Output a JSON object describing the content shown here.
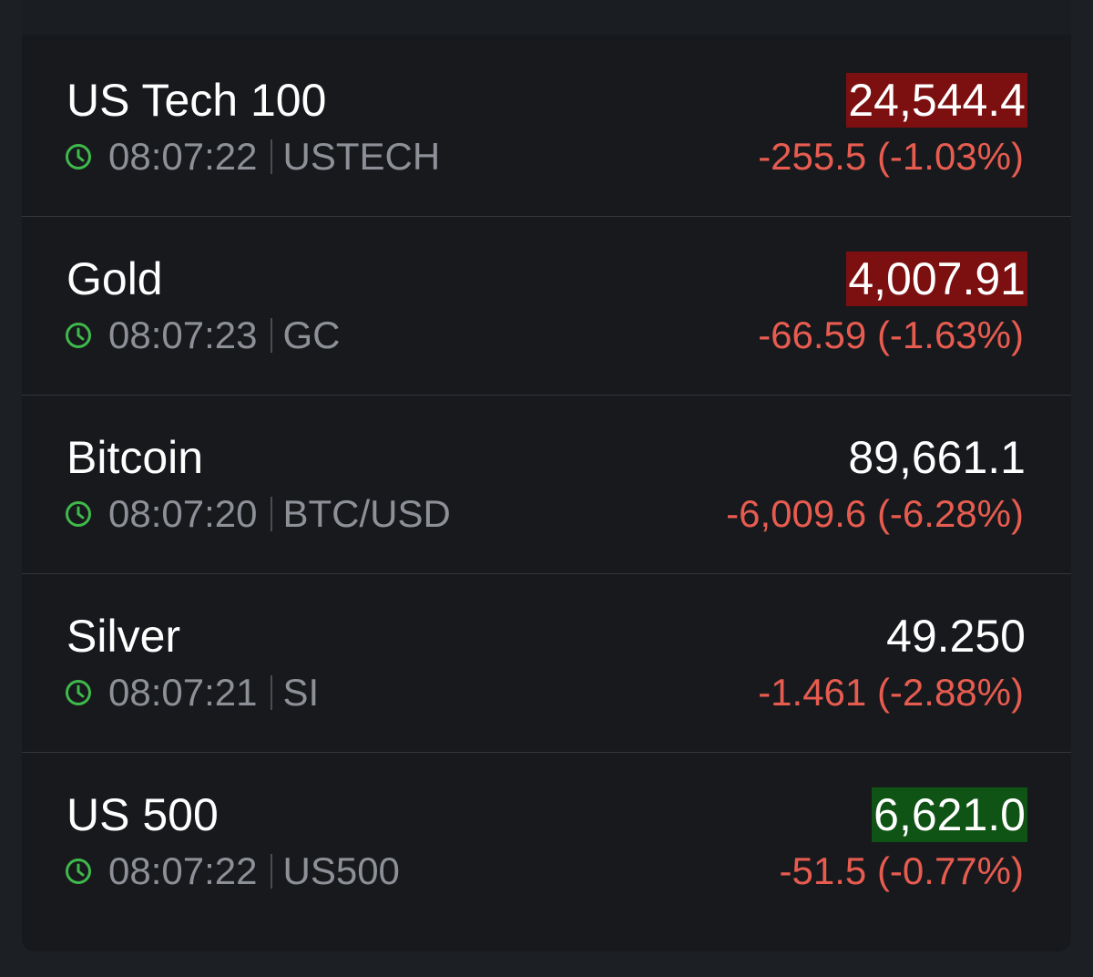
{
  "accent": {
    "negative": "#e85c50",
    "positive_bg": "#0f5414",
    "negative_bg": "#7c1010",
    "clock": "#3fb94b"
  },
  "items": [
    {
      "name": "US Tech 100",
      "time": "08:07:22",
      "symbol": "USTECH",
      "price": "24,544.4",
      "price_highlight": "down",
      "change": "-255.5 (-1.03%)"
    },
    {
      "name": "Gold",
      "time": "08:07:23",
      "symbol": "GC",
      "price": "4,007.91",
      "price_highlight": "down",
      "change": "-66.59 (-1.63%)"
    },
    {
      "name": "Bitcoin",
      "time": "08:07:20",
      "symbol": "BTC/USD",
      "price": "89,661.1",
      "price_highlight": "none",
      "change": "-6,009.6 (-6.28%)"
    },
    {
      "name": "Silver",
      "time": "08:07:21",
      "symbol": "SI",
      "price": "49.250",
      "price_highlight": "none",
      "change": "-1.461 (-2.88%)"
    },
    {
      "name": "US 500",
      "time": "08:07:22",
      "symbol": "US500",
      "price": "6,621.0",
      "price_highlight": "up",
      "change": "-51.5 (-0.77%)"
    }
  ]
}
